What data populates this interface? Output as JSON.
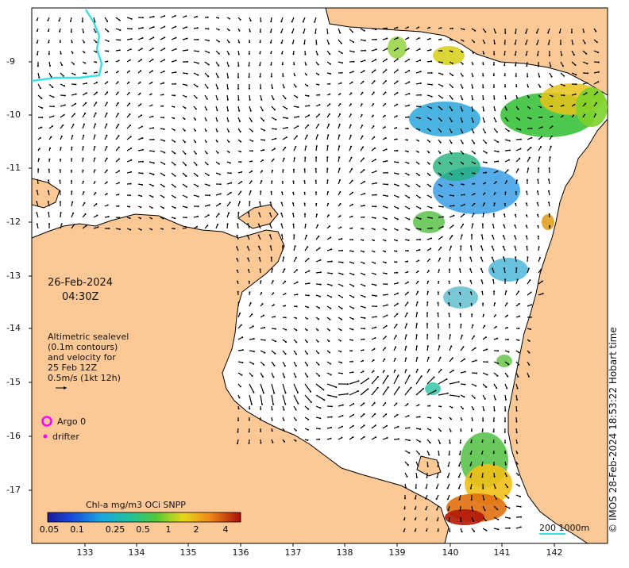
{
  "title_date": "26-Feb-2024",
  "title_time": "04:30Z",
  "altimetry_note": [
    "Altimetric sealevel",
    "(0.1m contours)",
    "and velocity for",
    "25 Feb 12Z",
    "0.5m/s (1kt 12h)"
  ],
  "legend": {
    "argo": "Argo 0",
    "drifter": "drifter"
  },
  "colorbar": {
    "title": "Chl-a mg/m3 OCi SNPP",
    "ticks": [
      "0.05",
      "0.1",
      "0.25",
      "0.5",
      "1",
      "2",
      "4"
    ]
  },
  "scale_bar": "200  1000m",
  "credit": "© IMOS 28-Feb-2024 18:53:22 Hobart time",
  "axes": {
    "x_ticks": [
      "133",
      "134",
      "135",
      "136",
      "137",
      "138",
      "139",
      "140",
      "141",
      "142"
    ],
    "y_ticks": [
      "-9",
      "-10",
      "-11",
      "-12",
      "-13",
      "-14",
      "-15",
      "-16",
      "-17"
    ]
  },
  "colors": {
    "land": "#fbc896",
    "argo": "#ff00ff",
    "contour": "#40e0e0"
  }
}
